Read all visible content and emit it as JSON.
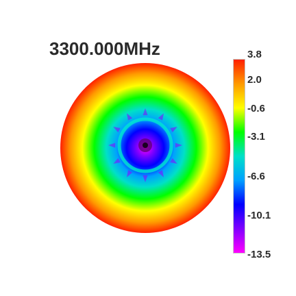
{
  "chart_data": {
    "type": "heatmap",
    "title": "3300.000MHz",
    "colorbar": {
      "max": 3.8,
      "min": -13.5,
      "ticks": [
        "3.8",
        "2.0",
        "-0.6",
        "-3.1",
        "-6.6",
        "-10.1",
        "-13.5"
      ],
      "tick_values": [
        3.8,
        2.0,
        -0.6,
        -3.1,
        -6.6,
        -10.1,
        -13.5
      ],
      "colors": [
        "#ff2000",
        "#ff9a00",
        "#ffff00",
        "#00ff00",
        "#00e0c8",
        "#00a0ff",
        "#0000ff",
        "#8000ff",
        "#ff00ff"
      ]
    },
    "pattern": {
      "shape": "polar",
      "center_value": -13.5,
      "edge_value": 3.8,
      "rings": [
        {
          "value": -13.5
        },
        {
          "value": -10.1
        },
        {
          "value": -6.6
        },
        {
          "value": -3.1
        },
        {
          "value": -0.6
        },
        {
          "value": 2.0
        },
        {
          "value": 3.8
        }
      ]
    }
  }
}
